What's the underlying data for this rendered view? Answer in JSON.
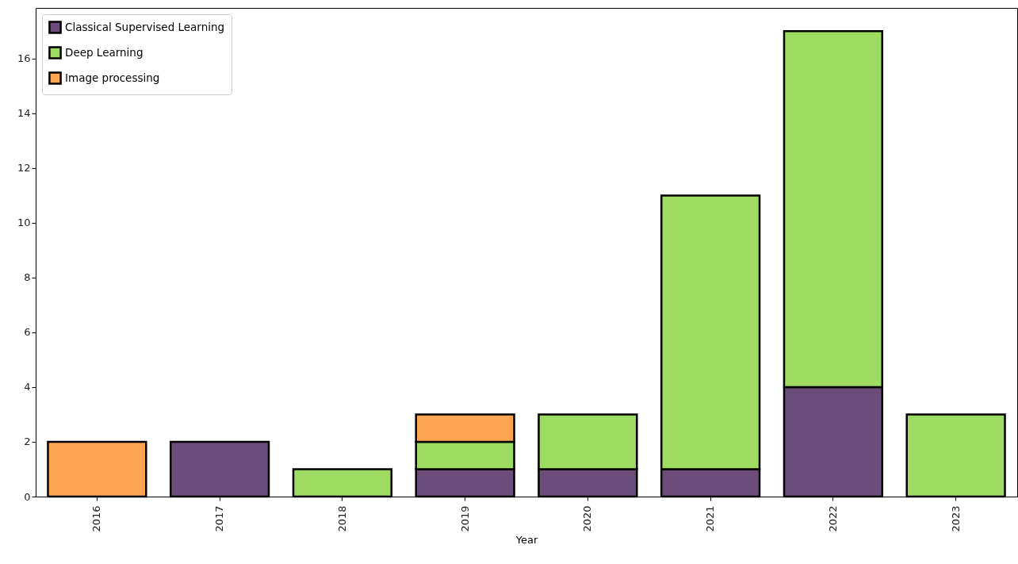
{
  "chart_data": {
    "type": "bar",
    "stacked": true,
    "xlabel": "Year",
    "categories": [
      "2016",
      "2017",
      "2018",
      "2019",
      "2020",
      "2021",
      "2022",
      "2023"
    ],
    "series": [
      {
        "name": "Classical Supervised Learning",
        "color": "#6b4c7a",
        "values": [
          null,
          2,
          null,
          1,
          1,
          1,
          4,
          null
        ]
      },
      {
        "name": "Deep Learning",
        "color": "#9ddb62",
        "values": [
          null,
          null,
          1,
          1,
          2,
          10,
          13,
          3
        ]
      },
      {
        "name": "Image processing",
        "color": "#fda552",
        "values": [
          2,
          null,
          null,
          1,
          null,
          null,
          null,
          null
        ]
      }
    ],
    "ylim": [
      0,
      17.85
    ],
    "yticks": [
      0,
      2,
      4,
      6,
      8,
      10,
      12,
      14,
      16
    ],
    "grid": false,
    "legend": "top left"
  }
}
